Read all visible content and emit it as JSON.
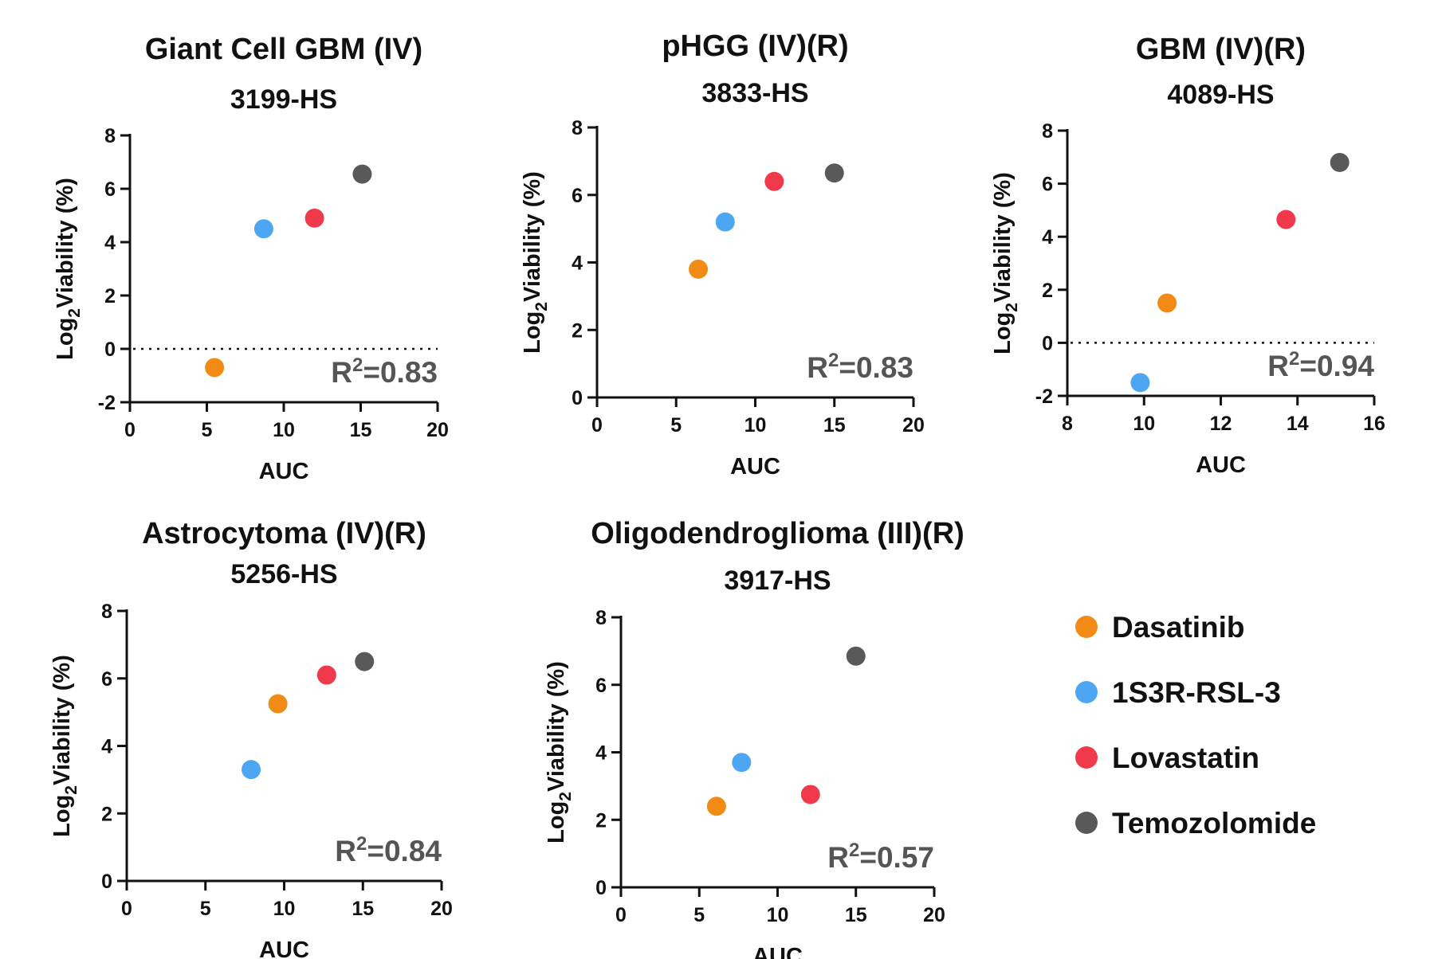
{
  "colors": {
    "Dasatinib": "#F28A16",
    "1S3R-RSL-3": "#4DA6F2",
    "Lovastatin": "#F0394A",
    "Temozolomide": "#595959"
  },
  "legend": {
    "items": [
      {
        "label": "Dasatinib"
      },
      {
        "label": "1S3R-RSL-3"
      },
      {
        "label": "Lovastatin"
      },
      {
        "label": "Temozolomide"
      }
    ]
  },
  "chart_data": [
    {
      "type": "scatter",
      "title": "Giant Cell GBM (IV)",
      "subtitle": "3199-HS",
      "xlabel": "AUC",
      "ylabel": "Log2Viability (%)",
      "xlim": [
        0,
        20
      ],
      "ylim": [
        -2,
        8
      ],
      "xticks": [
        0,
        5,
        10,
        15,
        20
      ],
      "yticks": [
        -2,
        0,
        2,
        4,
        6,
        8
      ],
      "reference_line": 0,
      "r2_label": "=0.83",
      "points": [
        {
          "drug": "Dasatinib",
          "x": 5.5,
          "y": -0.7
        },
        {
          "drug": "1S3R-RSL-3",
          "x": 8.7,
          "y": 4.5
        },
        {
          "drug": "Lovastatin",
          "x": 12.0,
          "y": 4.9
        },
        {
          "drug": "Temozolomide",
          "x": 15.1,
          "y": 6.55
        }
      ]
    },
    {
      "type": "scatter",
      "title": "pHGG (IV)(R)",
      "subtitle": "3833-HS",
      "xlabel": "AUC",
      "ylabel": "Log2Viability (%)",
      "xlim": [
        0,
        20
      ],
      "ylim": [
        0,
        8
      ],
      "xticks": [
        0,
        5,
        10,
        15,
        20
      ],
      "yticks": [
        0,
        2,
        4,
        6,
        8
      ],
      "reference_line": null,
      "r2_label": "=0.83",
      "points": [
        {
          "drug": "Dasatinib",
          "x": 6.4,
          "y": 3.8
        },
        {
          "drug": "1S3R-RSL-3",
          "x": 8.1,
          "y": 5.2
        },
        {
          "drug": "Lovastatin",
          "x": 11.2,
          "y": 6.4
        },
        {
          "drug": "Temozolomide",
          "x": 15.0,
          "y": 6.65
        }
      ]
    },
    {
      "type": "scatter",
      "title": "GBM (IV)(R)",
      "subtitle": "4089-HS",
      "xlabel": "AUC",
      "ylabel": "Log2Viability (%)",
      "xlim": [
        8,
        16
      ],
      "ylim": [
        -2,
        8
      ],
      "xticks": [
        8,
        10,
        12,
        14,
        16
      ],
      "yticks": [
        -2,
        0,
        2,
        4,
        6,
        8
      ],
      "reference_line": 0,
      "r2_label": "=0.94",
      "points": [
        {
          "drug": "Dasatinib",
          "x": 10.6,
          "y": 1.5
        },
        {
          "drug": "1S3R-RSL-3",
          "x": 9.9,
          "y": -1.5
        },
        {
          "drug": "Lovastatin",
          "x": 13.7,
          "y": 4.65
        },
        {
          "drug": "Temozolomide",
          "x": 15.1,
          "y": 6.8
        }
      ]
    },
    {
      "type": "scatter",
      "title": "Astrocytoma (IV)(R)",
      "subtitle": "5256-HS",
      "xlabel": "AUC",
      "ylabel": "Log2Viability (%)",
      "xlim": [
        0,
        20
      ],
      "ylim": [
        0,
        8
      ],
      "xticks": [
        0,
        5,
        10,
        15,
        20
      ],
      "yticks": [
        0,
        2,
        4,
        6,
        8
      ],
      "reference_line": null,
      "r2_label": "=0.84",
      "points": [
        {
          "drug": "Dasatinib",
          "x": 9.6,
          "y": 5.25
        },
        {
          "drug": "1S3R-RSL-3",
          "x": 7.9,
          "y": 3.3
        },
        {
          "drug": "Lovastatin",
          "x": 12.7,
          "y": 6.1
        },
        {
          "drug": "Temozolomide",
          "x": 15.1,
          "y": 6.5
        }
      ]
    },
    {
      "type": "scatter",
      "title": "Oligodendroglioma (III)(R)",
      "subtitle": "3917-HS",
      "xlabel": "AUC",
      "ylabel": "Log2Viability (%)",
      "xlim": [
        0,
        20
      ],
      "ylim": [
        0,
        8
      ],
      "xticks": [
        0,
        5,
        10,
        15,
        20
      ],
      "yticks": [
        0,
        2,
        4,
        6,
        8
      ],
      "reference_line": null,
      "r2_label": "=0.57",
      "points": [
        {
          "drug": "Dasatinib",
          "x": 6.1,
          "y": 2.4
        },
        {
          "drug": "1S3R-RSL-3",
          "x": 7.7,
          "y": 3.7
        },
        {
          "drug": "Lovastatin",
          "x": 12.1,
          "y": 2.75
        },
        {
          "drug": "Temozolomide",
          "x": 15.0,
          "y": 6.85
        }
      ]
    }
  ]
}
